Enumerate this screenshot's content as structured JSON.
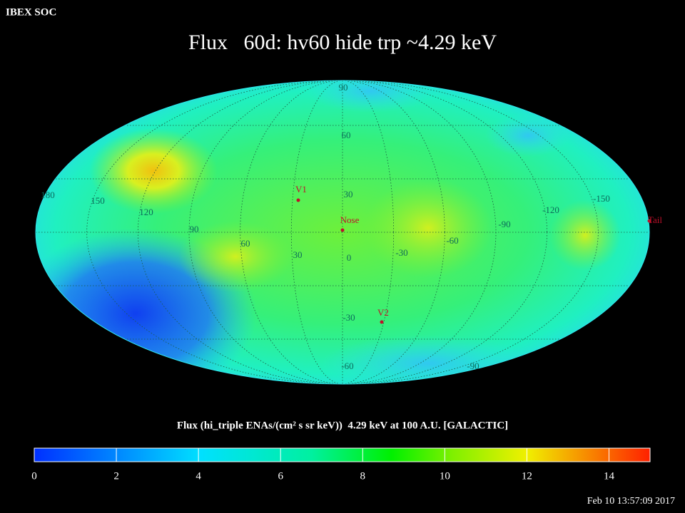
{
  "header": {
    "org": "IBEX SOC",
    "title": "Flux   60d: hv60 hide trp ~4.29 keV"
  },
  "map": {
    "lon_labels": [
      180,
      150,
      120,
      90,
      60,
      30,
      0,
      -30,
      -60,
      -90,
      -120,
      -150
    ],
    "lat_labels": [
      90,
      60,
      30,
      -30,
      -60,
      -90
    ],
    "markers": [
      {
        "label": "V1"
      },
      {
        "label": "Nose"
      },
      {
        "label": "V2"
      },
      {
        "label": "Tail"
      }
    ]
  },
  "colorbar": {
    "title": "Flux (hi_triple ENAs/(cm² s sr keV))  4.29 keV at 100 A.U. [GALACTIC]",
    "range": [
      0,
      15
    ],
    "ticks": [
      0,
      2,
      4,
      6,
      8,
      10,
      12,
      14
    ]
  },
  "footer": {
    "timestamp": "Feb 10 13:57:09 2017"
  }
}
